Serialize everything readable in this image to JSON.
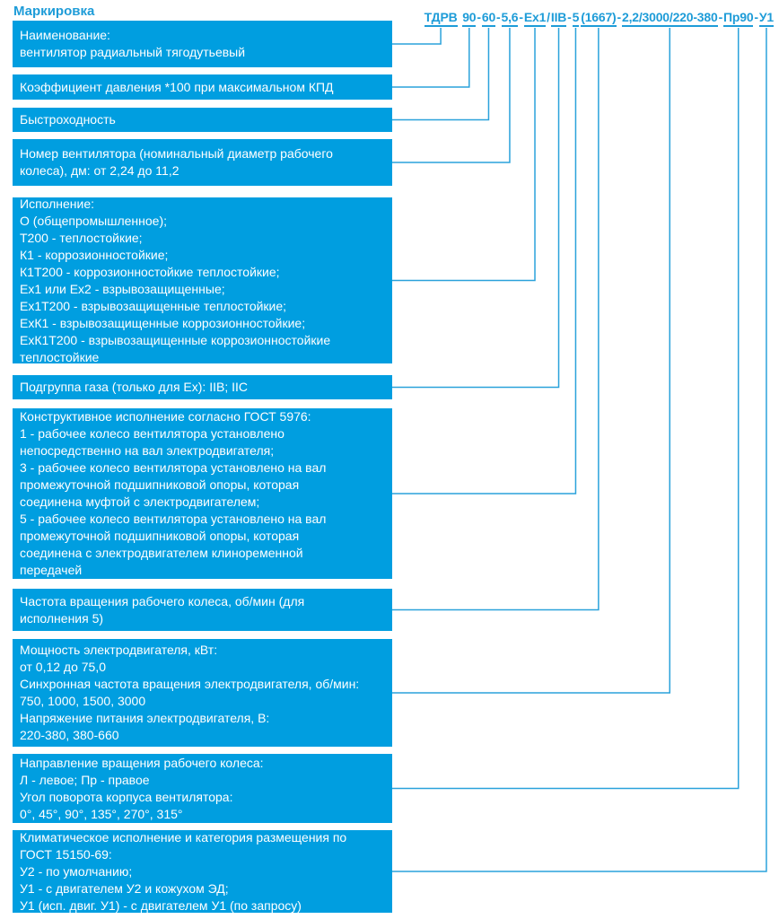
{
  "title": "Маркировка",
  "accent_color": "#1E9CD8",
  "box_color": "#009EE0",
  "marking": {
    "full_code": "ТДРВ 90-60-5,6-Ex1/IIB-5(1667)-2,2/3000/220-380-Пр90-У1",
    "segments": [
      {
        "text": "ТДРВ",
        "sep": " "
      },
      {
        "text": "90",
        "sep": "-"
      },
      {
        "text": "60",
        "sep": "-"
      },
      {
        "text": "5,6",
        "sep": "-"
      },
      {
        "text": "Ex1",
        "sep": "/"
      },
      {
        "text": "IIB",
        "sep": "-"
      },
      {
        "text": "5",
        "sep": ""
      },
      {
        "text": "(1667)",
        "sep": "-"
      },
      {
        "text": "2,2/3000/220-380",
        "sep": "-"
      },
      {
        "text": "Пр90",
        "sep": "-"
      },
      {
        "text": "У1",
        "sep": ""
      }
    ]
  },
  "boxes": [
    {
      "key": "name",
      "lines": [
        "Наименование:",
        "вентилятор радиальный тягодутьевый"
      ]
    },
    {
      "key": "pressure-coefficient",
      "lines": [
        "Коэффициент давления *100 при максимальном КПД"
      ]
    },
    {
      "key": "speed-coefficient",
      "lines": [
        "Быстроходность"
      ]
    },
    {
      "key": "fan-number",
      "lines": [
        "Номер вентилятора (номинальный диаметр рабочего",
        "колеса), дм: от 2,24 до 11,2"
      ]
    },
    {
      "key": "design-version",
      "lines": [
        "Исполнение:",
        "О (общепромышленное);",
        "Т200 - теплостойкие;",
        "К1 - коррозионностойкие;",
        "К1Т200 - коррозионностойкие теплостойкие;",
        "Ex1 или Ex2 - взрывозащищенные;",
        "Ex1Т200 - взрывозащищенные теплостойкие;",
        "ExК1 - взрывозащищенные коррозионностойкие;",
        "ExК1Т200 - взрывозащищенные коррозионностойкие",
        "теплостойкие"
      ]
    },
    {
      "key": "gas-subgroup",
      "lines": [
        "Подгруппа газа (только для Ex): IIB; IIC"
      ]
    },
    {
      "key": "constructive-version",
      "lines": [
        "Конструктивное исполнение согласно ГОСТ 5976:",
        "1 - рабочее колесо вентилятора установлено",
        "непосредственно на вал электродвигателя;",
        "3 - рабочее колесо вентилятора установлено на вал",
        "промежуточной подшипниковой опоры, которая",
        "соединена муфтой с электродвигателем;",
        "5 - рабочее колесо вентилятора установлено на вал",
        "промежуточной подшипниковой опоры, которая",
        "соединена с электродвигателем клиноременной",
        "передачей"
      ]
    },
    {
      "key": "impeller-speed",
      "lines": [
        "Частота вращения рабочего колеса, об/мин (для",
        "исполнения 5)"
      ]
    },
    {
      "key": "motor-parameters",
      "lines": [
        "Мощность электродвигателя, кВт:",
        "от 0,12 до 75,0",
        "Синхронная частота вращения электродвигателя, об/мин:",
        "750, 1000, 1500, 3000",
        "Напряжение питания электродвигателя, В:",
        "220-380, 380-660"
      ]
    },
    {
      "key": "rotation-direction",
      "lines": [
        "Направление вращения рабочего колеса:",
        "Л - левое; Пр - правое",
        "Угол поворота корпуса вентилятора:",
        "0°, 45°, 90°, 135°, 270°, 315°"
      ]
    },
    {
      "key": "climatic-version",
      "lines": [
        "Климатическое исполнение и категория размещения по",
        "ГОСТ 15150-69:",
        "У2 - по умолчанию;",
        "У1 - с двигателем У2 и кожухом ЭД;",
        "У1 (исп. двиг. У1) - с двигателем У1 (по запросу)"
      ]
    }
  ]
}
